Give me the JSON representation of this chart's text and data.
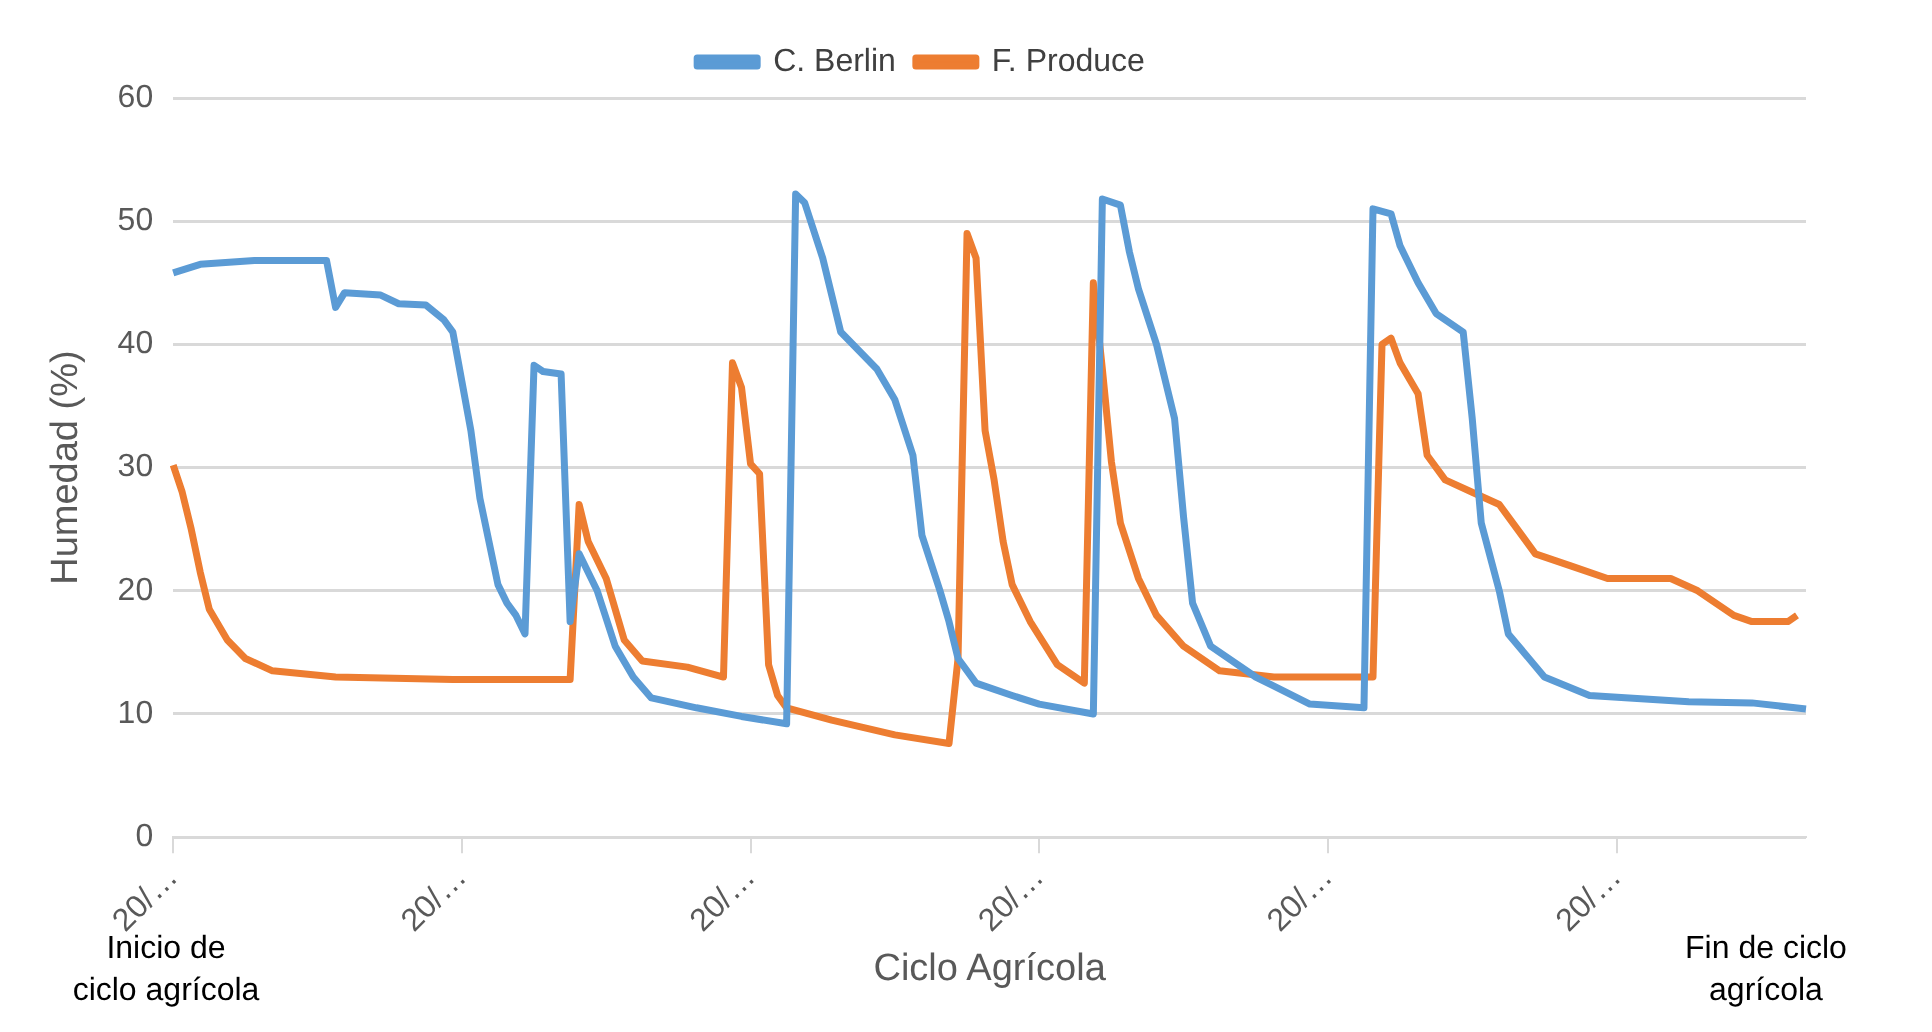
{
  "chart_data": {
    "type": "line",
    "xlabel": "Ciclo Agrícola",
    "ylabel": "Humedad (%)",
    "categories": [
      "20/…",
      null,
      null,
      null,
      null,
      null,
      null,
      null,
      null,
      null,
      null,
      null,
      null,
      null,
      null,
      null,
      null,
      null,
      null,
      null,
      null,
      null,
      null,
      null,
      null,
      null,
      null,
      null,
      null,
      null,
      null,
      null,
      "20/…",
      null,
      null,
      null,
      null,
      null,
      null,
      null,
      null,
      null,
      null,
      null,
      null,
      null,
      null,
      null,
      null,
      null,
      null,
      null,
      null,
      null,
      null,
      null,
      null,
      null,
      null,
      null,
      null,
      null,
      null,
      null,
      "20/…",
      null,
      null,
      null,
      null,
      null,
      null,
      null,
      null,
      null,
      null,
      null,
      null,
      null,
      null,
      null,
      null,
      null,
      null,
      null,
      null,
      null,
      null,
      null,
      null,
      null,
      null,
      null,
      null,
      null,
      null,
      null,
      "20/…",
      null,
      null,
      null,
      null,
      null,
      null,
      null,
      null,
      null,
      null,
      null,
      null,
      null,
      null,
      null,
      null,
      null,
      null,
      null,
      null,
      null,
      null,
      null,
      null,
      null,
      null,
      null,
      null,
      null,
      null,
      null,
      "20/…",
      null,
      null,
      null,
      null,
      null,
      null,
      null,
      null,
      null,
      null,
      null,
      null,
      null,
      null,
      null,
      null,
      null,
      null,
      null,
      null,
      null,
      null,
      null,
      null,
      null,
      null,
      null,
      null,
      null,
      null,
      null,
      "20/…",
      null,
      null,
      null,
      null,
      null,
      null,
      null,
      null,
      null,
      null,
      null,
      null,
      null,
      null,
      null,
      null,
      null,
      null,
      null,
      null,
      null
    ],
    "ylim": [
      0,
      60
    ],
    "yticks": [
      0,
      10,
      20,
      30,
      40,
      50,
      60
    ],
    "grid": "y",
    "legend": "top",
    "line_style": "solid",
    "marker": "none",
    "annotations": [
      "Inicio de\nciclo agrícola",
      "Fin de ciclo\nagrícola"
    ],
    "series": [
      {
        "name": "C. Berlin",
        "color": "#5b9bd5",
        "values": [
          45.8,
          null,
          null,
          46.5,
          null,
          null,
          null,
          null,
          null,
          46.8,
          null,
          null,
          null,
          null,
          null,
          null,
          null,
          46.8,
          43,
          44.2,
          null,
          null,
          null,
          44,
          null,
          43.3,
          null,
          null,
          43.2,
          null,
          42,
          41,
          37,
          33,
          27.5,
          24,
          20.5,
          19,
          18,
          16.5,
          38.3,
          37.8,
          null,
          37.6,
          17.5,
          23,
          null,
          20,
          null,
          15.5,
          null,
          13,
          null,
          11.3,
          null,
          null,
          null,
          null,
          10.5,
          null,
          null,
          null,
          null,
          9.8,
          null,
          null,
          null,
          null,
          9.2,
          52.2,
          51.5,
          null,
          47,
          44,
          41,
          null,
          null,
          null,
          38,
          null,
          35.5,
          null,
          31,
          24.5,
          null,
          20,
          17.5,
          14.5,
          null,
          12.5,
          null,
          null,
          null,
          11.5,
          null,
          null,
          10.8,
          null,
          null,
          null,
          null,
          null,
          10,
          51.8,
          null,
          51.3,
          47.5,
          44.5,
          null,
          40,
          null,
          34,
          26,
          19,
          null,
          15.5,
          null,
          null,
          null,
          null,
          13,
          null,
          null,
          null,
          null,
          null,
          10.8,
          null,
          null,
          null,
          null,
          null,
          10.5,
          51,
          null,
          50.6,
          48,
          null,
          45,
          null,
          42.5,
          null,
          null,
          41,
          34,
          25.5,
          null,
          20,
          16.5,
          null,
          null,
          null,
          13,
          null,
          null,
          null,
          null,
          11.5,
          null,
          null,
          null,
          null,
          null,
          null,
          null,
          null,
          null,
          null,
          11,
          null,
          null,
          null,
          null,
          null,
          null,
          10.9,
          null,
          null,
          null,
          null,
          null,
          10.4
        ]
      },
      {
        "name": "F. Produce",
        "color": "#ed7d31",
        "values": [
          30.2,
          28,
          25,
          21.5,
          18.5,
          null,
          16,
          null,
          14.5,
          null,
          null,
          13.5,
          null,
          null,
          null,
          null,
          null,
          null,
          13,
          null,
          null,
          null,
          null,
          null,
          null,
          null,
          null,
          null,
          null,
          null,
          null,
          12.8,
          null,
          null,
          null,
          null,
          null,
          null,
          null,
          null,
          null,
          null,
          null,
          null,
          12.8,
          27,
          24,
          null,
          21,
          null,
          16,
          null,
          14.3,
          null,
          null,
          null,
          null,
          13.8,
          null,
          null,
          null,
          13,
          38.5,
          36.5,
          30.3,
          29.5,
          14,
          11.5,
          10.5,
          null,
          null,
          null,
          null,
          9.5,
          null,
          null,
          null,
          null,
          null,
          null,
          8.3,
          null,
          null,
          null,
          null,
          null,
          7.6,
          14.5,
          49,
          47,
          33,
          29,
          24,
          20.5,
          null,
          17.5,
          null,
          null,
          14,
          null,
          null,
          12.5,
          45,
          38,
          30.5,
          25.5,
          null,
          21,
          null,
          18,
          null,
          null,
          15.5,
          null,
          null,
          null,
          13.5,
          null,
          null,
          null,
          null,
          null,
          13,
          null,
          null,
          null,
          null,
          null,
          null,
          null,
          null,
          null,
          null,
          13,
          40,
          40.5,
          38.5,
          null,
          36,
          31,
          null,
          29,
          null,
          null,
          28,
          null,
          null,
          27,
          null,
          25,
          null,
          23,
          null,
          null,
          null,
          22,
          null,
          null,
          null,
          21,
          null,
          null,
          null,
          null,
          null,
          null,
          21,
          null,
          null,
          20,
          null,
          null,
          null,
          18,
          null,
          17.5,
          null,
          null,
          null,
          17.5,
          18,
          null
        ]
      }
    ]
  }
}
